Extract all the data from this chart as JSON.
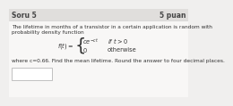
{
  "title_left": "Soru 5",
  "title_right": "5 puan",
  "body_line1": "The lifetime in months of a transistor in a certain application is random with",
  "body_line2": "probability density function",
  "formula_label": "$f(t) =$",
  "formula_upper": "$ce^{-ct}$",
  "formula_upper_cond": "if $t > 0$",
  "formula_lower": "$0$",
  "formula_lower_cond": "otherwise",
  "footer_text": "where c=0.66. Find the mean lifetime. Round the answer to four decimal places.",
  "bg_color": "#f0efee",
  "box_bg": "#ffffff",
  "title_bg": "#e0dedc",
  "content_bg": "#f8f7f6",
  "font_size_title": 5.5,
  "font_size_body": 4.2,
  "font_size_formula": 4.8,
  "text_color": "#333333",
  "title_color": "#444444"
}
